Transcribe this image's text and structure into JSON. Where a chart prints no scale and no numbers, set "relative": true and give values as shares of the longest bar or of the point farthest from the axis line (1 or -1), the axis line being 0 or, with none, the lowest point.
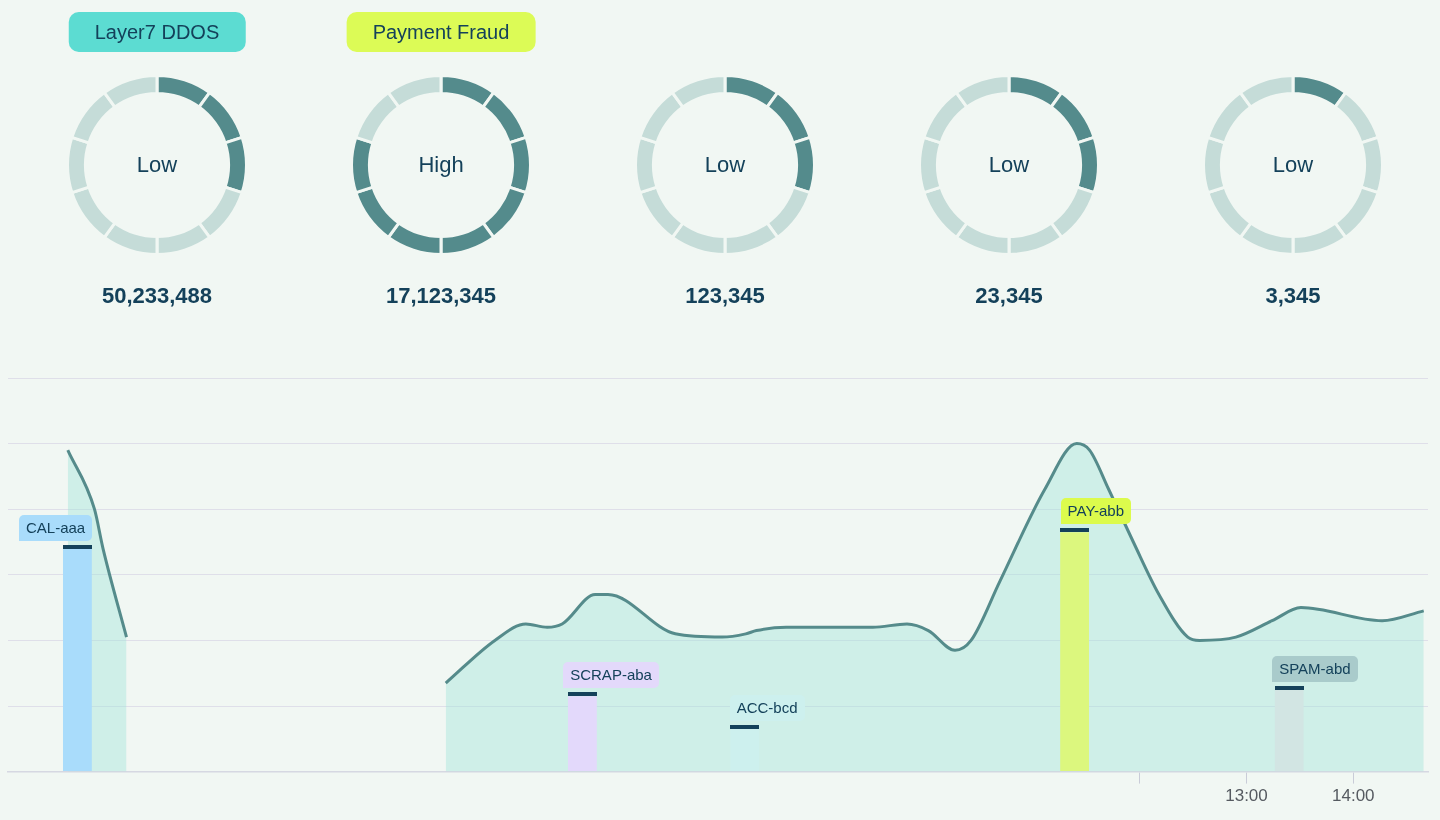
{
  "chart_data": [
    {
      "type": "donut",
      "title": "Layer7 DDOS",
      "categories": [
        null,
        null,
        null,
        null,
        null,
        null,
        null,
        null,
        null,
        null
      ],
      "values": [
        10,
        10,
        10,
        10,
        10,
        10,
        10,
        10,
        10,
        10
      ],
      "colors": [
        "#548b8c",
        "#548b8c",
        "#548b8c",
        "#c5dcd8",
        "#c5dcd8",
        "#c5dcd8",
        "#c5dcd8",
        "#c5dcd8",
        "#c5dcd8",
        "#c5dcd8"
      ],
      "annotations": [
        "Low",
        "50,233,488"
      ]
    },
    {
      "type": "donut",
      "title": "Payment Fraud",
      "categories": [
        null,
        null,
        null,
        null,
        null,
        null,
        null,
        null,
        null,
        null
      ],
      "values": [
        10,
        10,
        10,
        10,
        10,
        10,
        10,
        10,
        10,
        10
      ],
      "colors": [
        "#548b8c",
        "#548b8c",
        "#548b8c",
        "#548b8c",
        "#548b8c",
        "#548b8c",
        "#548b8c",
        "#548b8c",
        "#c5dcd8",
        "#c5dcd8"
      ],
      "annotations": [
        "High",
        "17,123,345"
      ]
    },
    {
      "type": "donut",
      "categories": [
        null,
        null,
        null,
        null,
        null,
        null,
        null,
        null,
        null,
        null
      ],
      "values": [
        10,
        10,
        10,
        10,
        10,
        10,
        10,
        10,
        10,
        10
      ],
      "colors": [
        "#548b8c",
        "#548b8c",
        "#548b8c",
        "#c5dcd8",
        "#c5dcd8",
        "#c5dcd8",
        "#c5dcd8",
        "#c5dcd8",
        "#c5dcd8",
        "#c5dcd8"
      ],
      "annotations": [
        "Low",
        "123,345"
      ]
    },
    {
      "type": "donut",
      "categories": [
        null,
        null,
        null,
        null,
        null,
        null,
        null,
        null,
        null,
        null
      ],
      "values": [
        10,
        10,
        10,
        10,
        10,
        10,
        10,
        10,
        10,
        10
      ],
      "colors": [
        "#548b8c",
        "#548b8c",
        "#548b8c",
        "#c5dcd8",
        "#c5dcd8",
        "#c5dcd8",
        "#c5dcd8",
        "#c5dcd8",
        "#c5dcd8",
        "#c5dcd8"
      ],
      "annotations": [
        "Low",
        "23,345"
      ]
    },
    {
      "type": "donut",
      "categories": [
        null,
        null,
        null,
        null,
        null,
        null,
        null,
        null,
        null,
        null
      ],
      "values": [
        10,
        10,
        10,
        10,
        10,
        10,
        10,
        10,
        10,
        10
      ],
      "colors": [
        "#548b8c",
        "#c5dcd8",
        "#c5dcd8",
        "#c5dcd8",
        "#c5dcd8",
        "#c5dcd8",
        "#c5dcd8",
        "#c5dcd8",
        "#c5dcd8",
        "#c5dcd8"
      ],
      "annotations": [
        "Low",
        "3,345"
      ]
    },
    {
      "type": "area",
      "relative": true,
      "grid": "y",
      "xlim": [
        1.4,
        14.7
      ],
      "xticks": [
        {
          "value": 12,
          "label": null
        },
        {
          "value": 13,
          "label": "13:00"
        },
        {
          "value": 14,
          "label": "14:00"
        }
      ],
      "series": [
        {
          "type": "area",
          "color": "#558b8b",
          "x": [
            1.96,
            2.21,
            2.29,
            2.51,
            4.0,
            5.5,
            5.96,
            6.25,
            6.45,
            6.59,
            6.9,
            7.02,
            7.65,
            8.09,
            8.31,
            8.41,
            8.69,
            9.5,
            9.82,
            10.02,
            10.27,
            10.42,
            10.69,
            11.11,
            11.41,
            11.53,
            11.71,
            11.94,
            12.18,
            12.45,
            12.56,
            12.9,
            13.24,
            13.51,
            14.27,
            14.66
          ],
          "values": [
            0.98,
            0.8,
            0.68,
            0.41,
            null,
            0.27,
            0.4,
            0.45,
            0.44,
            0.45,
            0.54,
            0.54,
            0.42,
            0.41,
            0.42,
            0.43,
            0.44,
            0.44,
            0.45,
            0.43,
            0.37,
            0.4,
            0.58,
            0.86,
            1,
            0.98,
            0.86,
            0.7,
            0.54,
            0.41,
            0.4,
            0.41,
            0.46,
            0.5,
            0.46,
            0.49
          ]
        },
        {
          "type": "bar",
          "x": [
            2.05,
            6.78,
            8.3,
            11.39,
            13.4
          ],
          "values": [
            0.68,
            0.23,
            0.13,
            0.73,
            0.25
          ],
          "colors": [
            "#a9dcfb",
            "#e3d9fb",
            "#cdf0ee",
            "#dcf77e",
            "#d2e5e3"
          ]
        }
      ],
      "annotations": [
        {
          "text": "CAL-aaa",
          "x": 2.05,
          "y": 0.68
        },
        {
          "text": "SCRAP-aba",
          "x": 6.78,
          "y": 0.23
        },
        {
          "text": "ACC-bcd",
          "x": 8.3,
          "y": 0.13
        },
        {
          "text": "PAY-abb",
          "x": 11.39,
          "y": 0.73
        },
        {
          "text": "SPAM-abd",
          "x": 13.4,
          "y": 0.25
        }
      ]
    }
  ]
}
